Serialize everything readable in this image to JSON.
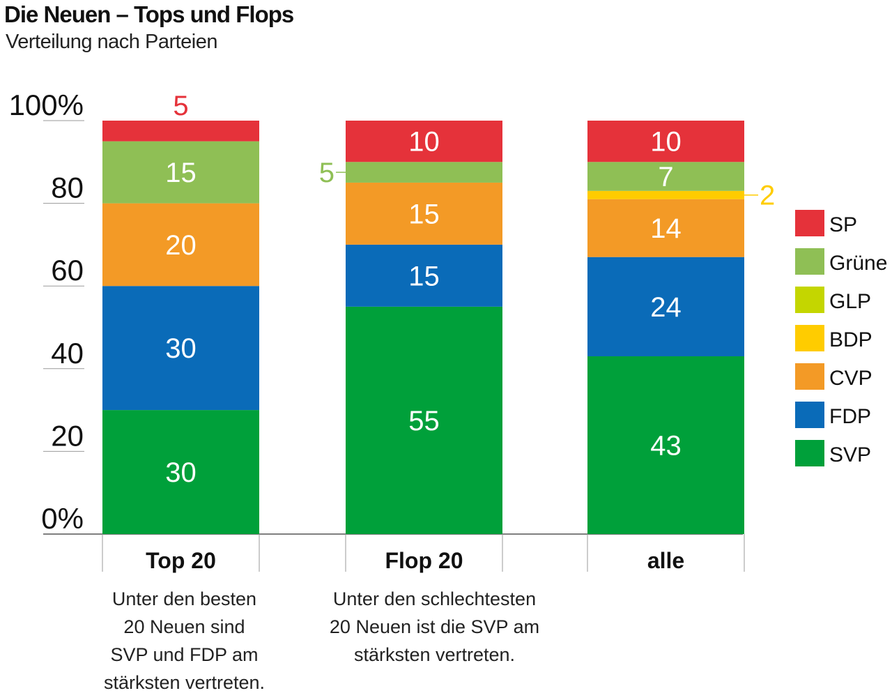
{
  "title": "Die Neuen – Tops und Flops",
  "subtitle": "Verteilung nach Parteien",
  "chart_data": {
    "type": "bar",
    "stacked": true,
    "ylim": [
      0,
      100
    ],
    "yticks": [
      "0%",
      "20",
      "40",
      "60",
      "80",
      "100%"
    ],
    "categories": [
      "Top 20",
      "Flop 20",
      "alle"
    ],
    "series": [
      {
        "name": "SVP",
        "color": "#00a03a",
        "values": [
          30,
          55,
          43
        ]
      },
      {
        "name": "FDP",
        "color": "#0a6bb8",
        "values": [
          30,
          15,
          24
        ]
      },
      {
        "name": "CVP",
        "color": "#f39a26",
        "values": [
          20,
          15,
          14
        ]
      },
      {
        "name": "BDP",
        "color": "#ffcc00",
        "values": [
          0,
          0,
          2
        ]
      },
      {
        "name": "GLP",
        "color": "#c4d600",
        "values": [
          0,
          0,
          0
        ]
      },
      {
        "name": "Grüne",
        "color": "#8fbf55",
        "values": [
          15,
          5,
          7
        ]
      },
      {
        "name": "SP",
        "color": "#e5323a",
        "values": [
          5,
          10,
          10
        ]
      }
    ],
    "legend_order": [
      "SP",
      "Grüne",
      "GLP",
      "BDP",
      "CVP",
      "FDP",
      "SVP"
    ],
    "notes": [
      [
        "Unter den besten",
        "20 Neuen sind",
        "SVP und FDP am",
        "stärksten vertreten."
      ],
      [
        "Unter den schlechtesten",
        "20 Neuen ist die SVP am",
        "stärksten vertreten."
      ],
      []
    ],
    "legend_position": "right",
    "grid": false
  }
}
